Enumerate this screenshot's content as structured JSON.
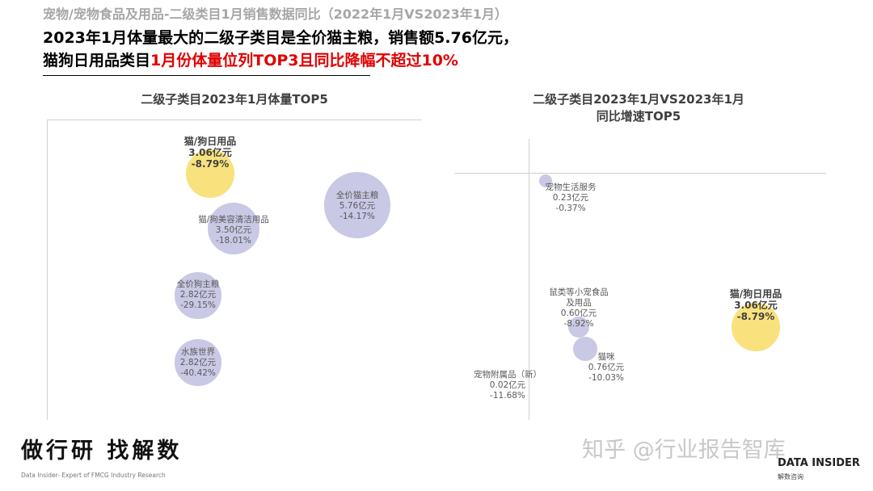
{
  "header": {
    "subtitle": "宠物/宠物食品及用品-二级类目1月销售数据同比（2022年1月VS2023年1月）",
    "headline1": "2023年1月体量最大的二级子类目是全价猫主粮，销售额5.76亿元，",
    "headline2_black": "猫狗日用品类目",
    "headline2_red": "1月份体量位列TOP3且同比降幅不超过10%"
  },
  "colors": {
    "bubble": "#b7b6dc",
    "highlight": "#f9e27e",
    "red": "#e00000"
  },
  "chart_data": [
    {
      "type": "bubble",
      "title": "二级子类目2023年1月体量TOP5",
      "points": [
        {
          "name": "猫/狗日用品",
          "sales": "3.06亿元",
          "growth": "-8.79%",
          "sales_value": 3.06,
          "growth_value": -8.79,
          "highlight": true
        },
        {
          "name": "全价猫主粮",
          "sales": "5.76亿元",
          "growth": "-14.17%",
          "sales_value": 5.76,
          "growth_value": -14.17
        },
        {
          "name": "猫/狗美容清洁用品",
          "sales": "3.50亿元",
          "growth": "-18.01%",
          "sales_value": 3.5,
          "growth_value": -18.01
        },
        {
          "name": "全价狗主粮",
          "sales": "2.82亿元",
          "growth": "-29.15%",
          "sales_value": 2.82,
          "growth_value": -29.15
        },
        {
          "name": "水族世界",
          "sales": "2.82亿元",
          "growth": "-40.42%",
          "sales_value": 2.82,
          "growth_value": -40.42
        }
      ]
    },
    {
      "type": "bubble",
      "title": "二级子类目2023年1月VS2023年1月",
      "title2": "同比增速TOP5",
      "points": [
        {
          "name": "宠物生活服务",
          "sales": "0.23亿元",
          "growth": "-0.37%",
          "sales_value": 0.23,
          "growth_value": -0.37
        },
        {
          "name": "鼠类等小宠食品",
          "name2": "及用品",
          "sales": "0.60亿元",
          "growth": "-8.92%",
          "sales_value": 0.6,
          "growth_value": -8.92
        },
        {
          "name": "猫咪",
          "sales": "0.76亿元",
          "growth": "-10.03%",
          "sales_value": 0.76,
          "growth_value": -10.03
        },
        {
          "name": "宠物附属品（新）",
          "sales": "0.02亿元",
          "growth": "-11.68%",
          "sales_value": 0.02,
          "growth_value": -11.68
        },
        {
          "name": "猫/狗日用品",
          "sales": "3.06亿元",
          "growth": "-8.79%",
          "sales_value": 3.06,
          "growth_value": -8.79,
          "highlight": true
        }
      ]
    }
  ],
  "footer": {
    "slogan": "做行研 找解数",
    "slogan_sub": "Data Insider- Expert of FMCG Industry Research",
    "watermark": "知乎 @行业报告智库",
    "logo": "DATA INSIDER",
    "logo_sub": "解数咨询"
  }
}
